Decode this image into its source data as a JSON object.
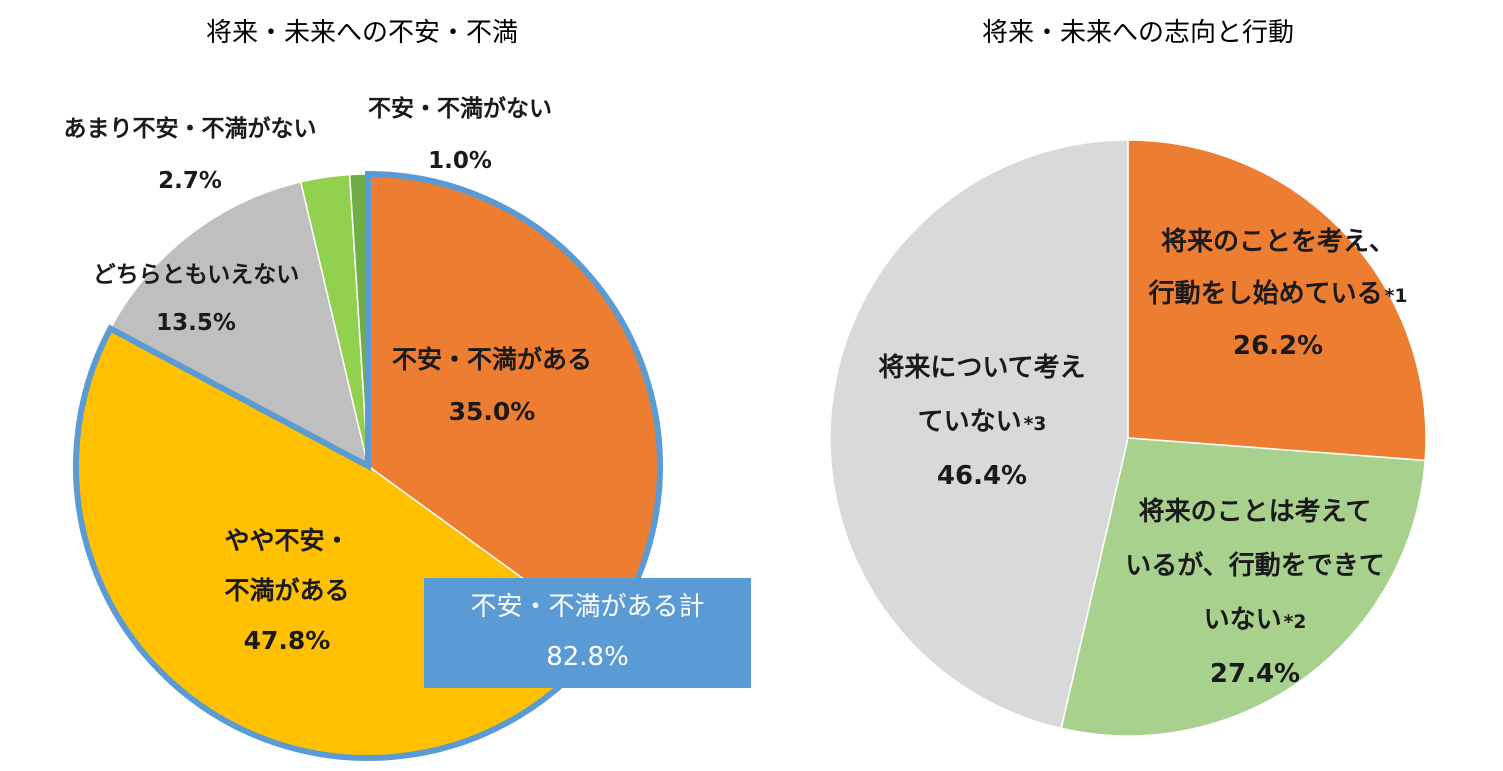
{
  "chart_data": [
    {
      "type": "pie",
      "title": "将来・未来への不安・不満",
      "slices": [
        {
          "label": "不安・不満がある",
          "value": 35.0,
          "value_label": "35.0%",
          "color": "#ed7d31"
        },
        {
          "label": "やや不安・不満がある",
          "label_lines": [
            "やや不安・",
            "不満がある"
          ],
          "value": 47.8,
          "value_label": "47.8%",
          "color": "#ffc000"
        },
        {
          "label": "どちらともいえない",
          "value": 13.5,
          "value_label": "13.5%",
          "color": "#bfbfbf"
        },
        {
          "label": "あまり不安・不満がない",
          "value": 2.7,
          "value_label": "2.7%",
          "color": "#92d050"
        },
        {
          "label": "不安・不満がない",
          "value": 1.0,
          "value_label": "1.0%",
          "color": "#70ad47"
        }
      ],
      "callout": {
        "label": "不安・不満がある計",
        "value": 82.8,
        "value_label": "82.8%",
        "color": "#5b9bd5"
      }
    },
    {
      "type": "pie",
      "title": "将来・未来への志向と行動",
      "slices": [
        {
          "label": "将来のことを考え、行動をし始めている*1",
          "label_lines": [
            "将来のことを考え、",
            "行動をし始めている"
          ],
          "note": "*1",
          "value": 26.2,
          "value_label": "26.2%",
          "color": "#ed7d31"
        },
        {
          "label": "将来のことは考えているが、行動をできていない*2",
          "label_lines": [
            "将来のことは考えて",
            "いるが、行動をできて",
            "いない"
          ],
          "note": "*2",
          "value": 27.4,
          "value_label": "27.4%",
          "color": "#a9d18e"
        },
        {
          "label": "将来について考えていない*3",
          "label_lines": [
            "将来について考え",
            "ていない"
          ],
          "note": "*3",
          "value": 46.4,
          "value_label": "46.4%",
          "color": "#d9d9d9"
        }
      ]
    }
  ]
}
